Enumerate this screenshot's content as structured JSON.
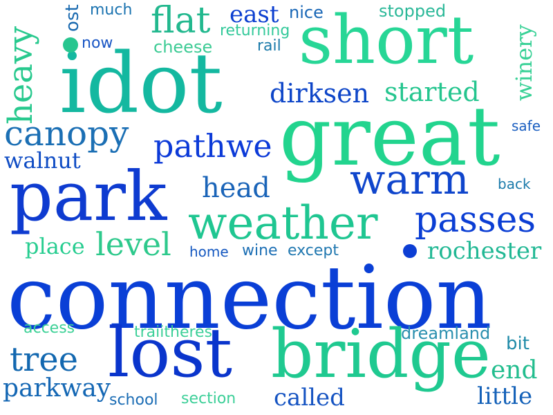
{
  "words": [
    {
      "text": "connection",
      "color": "#0a3fd6",
      "weight": 1.0
    },
    {
      "text": "idot",
      "color": "#14b8a0",
      "weight": 0.95
    },
    {
      "text": "great",
      "color": "#22d48e",
      "weight": 0.9
    },
    {
      "text": "park",
      "color": "#0e3bd0",
      "weight": 0.85
    },
    {
      "text": "short",
      "color": "#27d696",
      "weight": 0.8
    },
    {
      "text": "bridge",
      "color": "#1fc990",
      "weight": 0.8
    },
    {
      "text": "lost",
      "color": "#0a35cc",
      "weight": 0.8
    },
    {
      "text": "weather",
      "color": "#1fc691",
      "weight": 0.65
    },
    {
      "text": "warm",
      "color": "#0f45cc",
      "weight": 0.6
    },
    {
      "text": "passes",
      "color": "#0b3ed4",
      "weight": 0.55
    },
    {
      "text": "canopy",
      "color": "#1b6fb4",
      "weight": 0.5
    },
    {
      "text": "pathwe",
      "color": "#0c3ad8",
      "weight": 0.45
    },
    {
      "text": "started",
      "color": "#24c58e",
      "weight": 0.45
    },
    {
      "text": "dirksen",
      "color": "#0d45c8",
      "weight": 0.4
    },
    {
      "text": "flat",
      "color": "#22b88e",
      "weight": 0.45
    },
    {
      "text": "heavy",
      "color": "#28c98e",
      "weight": 0.45
    },
    {
      "text": "level",
      "color": "#2ec98c",
      "weight": 0.45
    },
    {
      "text": "head",
      "color": "#1a64b8",
      "weight": 0.35
    },
    {
      "text": "tree",
      "color": "#1368b0",
      "weight": 0.45
    },
    {
      "text": "rochester",
      "color": "#21b894",
      "weight": 0.35
    },
    {
      "text": "parkway",
      "color": "#1467b4",
      "weight": 0.35
    },
    {
      "text": "walnut",
      "color": "#0f4cc4",
      "weight": 0.3
    },
    {
      "text": "place",
      "color": "#27cd90",
      "weight": 0.3
    },
    {
      "text": "called",
      "color": "#1654c2",
      "weight": 0.3
    },
    {
      "text": "little",
      "color": "#1461b8",
      "weight": 0.3
    },
    {
      "text": "end",
      "color": "#22bd8e",
      "weight": 0.3
    },
    {
      "text": "east",
      "color": "#0c3fd0",
      "weight": 0.3
    },
    {
      "text": "winery",
      "color": "#38d196",
      "weight": 0.28
    },
    {
      "text": "dreamland",
      "color": "#2a8fae",
      "weight": 0.25
    },
    {
      "text": "bit",
      "color": "#1e8aa8",
      "weight": 0.22
    },
    {
      "text": "stopped",
      "color": "#2ab898",
      "weight": 0.22
    },
    {
      "text": "cheese",
      "color": "#3ccb94",
      "weight": 0.22
    },
    {
      "text": "returning",
      "color": "#33c99a",
      "weight": 0.2
    },
    {
      "text": "rail",
      "color": "#1a7aaa",
      "weight": 0.2
    },
    {
      "text": "nice",
      "color": "#1866b6",
      "weight": 0.2
    },
    {
      "text": "much",
      "color": "#1b73b0",
      "weight": 0.2
    },
    {
      "text": "now",
      "color": "#1855c4",
      "weight": 0.2
    },
    {
      "text": "ost",
      "color": "#1a6ab0",
      "weight": 0.2
    },
    {
      "text": "safe",
      "color": "#1a5ec0",
      "weight": 0.18
    },
    {
      "text": "back",
      "color": "#1a7aaa",
      "weight": 0.18
    },
    {
      "text": "home",
      "color": "#1558c0",
      "weight": 0.2
    },
    {
      "text": "wine",
      "color": "#1b6eb4",
      "weight": 0.2
    },
    {
      "text": "except",
      "color": "#2178b0",
      "weight": 0.2
    },
    {
      "text": "access",
      "color": "#3cd196",
      "weight": 0.2
    },
    {
      "text": "traiitheres",
      "color": "#3ccf98",
      "weight": 0.2
    },
    {
      "text": "school",
      "color": "#1a6cb4",
      "weight": 0.2
    },
    {
      "text": "section",
      "color": "#3ccf98",
      "weight": 0.2
    }
  ],
  "dots": [
    {
      "color": "#27c68f"
    },
    {
      "color": "#0c3ed4"
    }
  ]
}
